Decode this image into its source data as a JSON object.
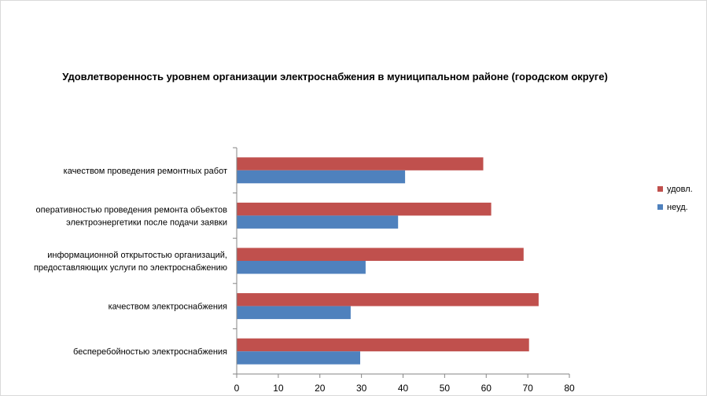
{
  "chart_data": {
    "type": "bar",
    "orientation": "horizontal",
    "title": "Удовлетворенность уровнем организации электроснабжения в муниципальном районе (городском округе)",
    "categories": [
      [
        "качеством проведения ремонтных работ"
      ],
      [
        "оперативностью проведения ремонта объектов",
        "электроэнергетики после подачи заявки"
      ],
      [
        "информационной открытостью организаций,",
        "предоставляющих услуги по электроснабжению"
      ],
      [
        "качеством электроснабжения"
      ],
      [
        "бесперебойностью электроснабжения"
      ]
    ],
    "series": [
      {
        "name": "удовл.",
        "color": "#c0504d",
        "values": [
          59.3,
          61.2,
          69.0,
          72.6,
          70.3
        ]
      },
      {
        "name": "неуд.",
        "color": "#4f81bd",
        "values": [
          40.5,
          38.8,
          31.0,
          27.4,
          29.7
        ]
      }
    ],
    "xlim": [
      0,
      80
    ],
    "xticks": [
      0,
      10,
      20,
      30,
      40,
      50,
      60,
      70,
      80
    ],
    "grid": false,
    "legend": "right"
  }
}
